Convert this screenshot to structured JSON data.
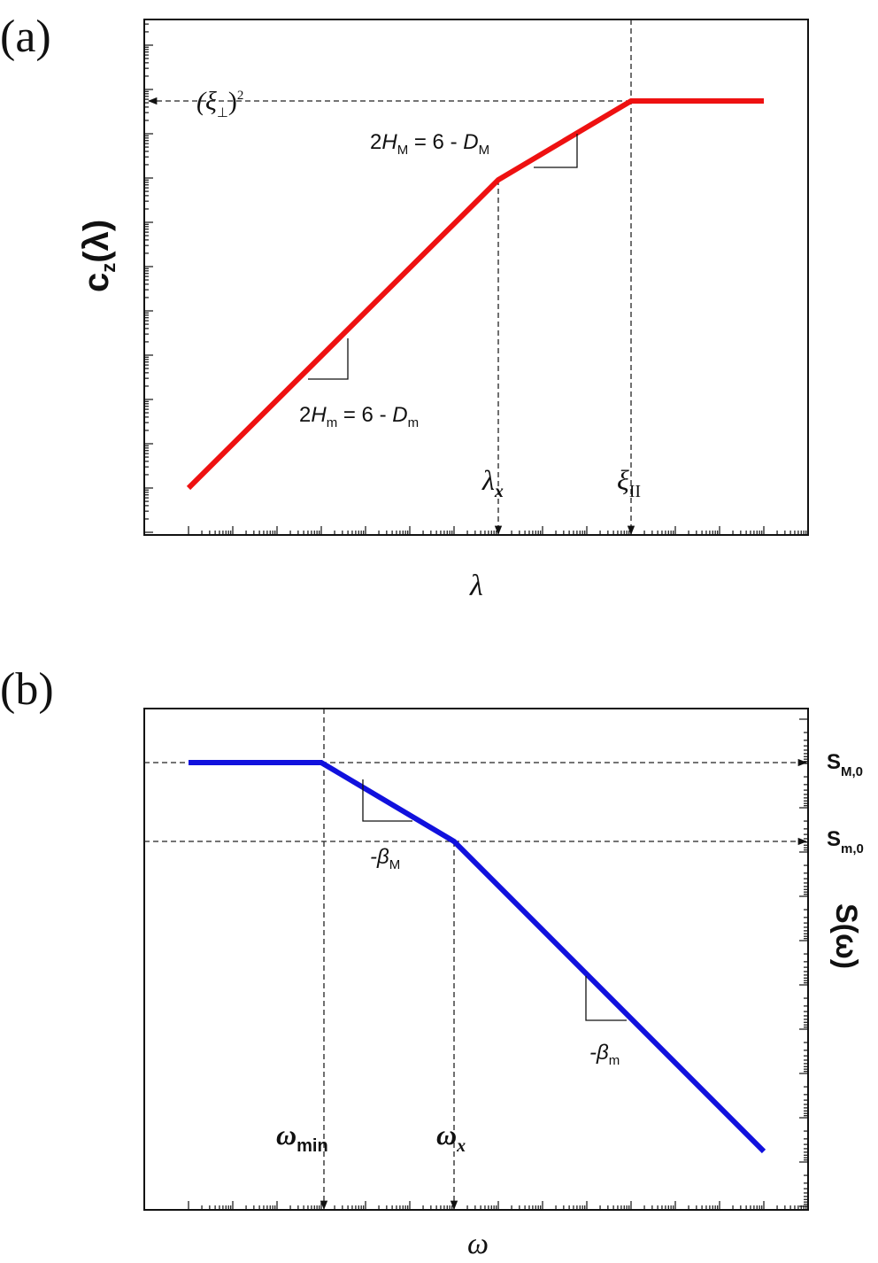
{
  "panel_a": {
    "tag": "(a)",
    "y_label": {
      "main": "c",
      "sub": "z",
      "rest": "(λ)"
    },
    "x_label": "λ",
    "xi_perp": {
      "open": "(ξ",
      "sub": "⊥",
      "close": ")",
      "sup": "2"
    },
    "slope_M": {
      "lead": "2",
      "h": "H",
      "h_sub": "M",
      "mid": " = 6 - ",
      "d": "D",
      "d_sub": "M"
    },
    "slope_m": {
      "lead": "2",
      "h": "H",
      "h_sub": "m",
      "mid": " = 6 - ",
      "d": "D",
      "d_sub": "m"
    },
    "lambda_x": {
      "main": "λ",
      "sub": "x"
    },
    "xi_par": {
      "main": "ξ",
      "sub": "II"
    }
  },
  "panel_b": {
    "tag": "(b)",
    "y_label": "S(ω)",
    "x_label": "ω",
    "s_M0": {
      "main": "S",
      "sub": "M,0"
    },
    "s_m0": {
      "main": "S",
      "sub": "m,0"
    },
    "beta_M": {
      "main": "-β",
      "sub": "M"
    },
    "beta_m": {
      "main": "-β",
      "sub": "m"
    },
    "omega_min": {
      "main": "ω",
      "sub": "min"
    },
    "omega_x": {
      "main": "ω",
      "sub": "x"
    }
  }
}
